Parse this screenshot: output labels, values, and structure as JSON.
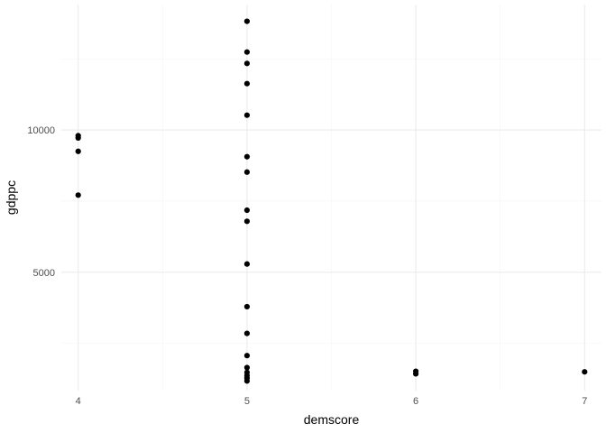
{
  "chart_data": {
    "type": "scatter",
    "title": "",
    "xlabel": "demscore",
    "ylabel": "gdppc",
    "xlim": [
      3.9,
      7.1
    ],
    "ylim": [
      840,
      14410
    ],
    "x_ticks": [
      4,
      5,
      6,
      7
    ],
    "x_tick_labels": [
      "4",
      "5",
      "6",
      "7"
    ],
    "y_ticks": [
      5000,
      10000
    ],
    "y_tick_labels": [
      "5000",
      "10000"
    ],
    "y_minor_ticks": [
      2500,
      7500,
      12500
    ],
    "grid": true,
    "legend": "none",
    "point_color": "#000000",
    "points": [
      {
        "x": 4,
        "y": 9800
      },
      {
        "x": 4,
        "y": 9720
      },
      {
        "x": 4,
        "y": 9250
      },
      {
        "x": 4,
        "y": 7710
      },
      {
        "x": 5,
        "y": 13820
      },
      {
        "x": 5,
        "y": 12740
      },
      {
        "x": 5,
        "y": 12340
      },
      {
        "x": 5,
        "y": 11630
      },
      {
        "x": 5,
        "y": 10520
      },
      {
        "x": 5,
        "y": 9060
      },
      {
        "x": 5,
        "y": 8520
      },
      {
        "x": 5,
        "y": 7180
      },
      {
        "x": 5,
        "y": 6790
      },
      {
        "x": 5,
        "y": 5290
      },
      {
        "x": 5,
        "y": 3790
      },
      {
        "x": 5,
        "y": 2850
      },
      {
        "x": 5,
        "y": 2070
      },
      {
        "x": 5,
        "y": 1650
      },
      {
        "x": 5,
        "y": 1480
      },
      {
        "x": 5,
        "y": 1370
      },
      {
        "x": 5,
        "y": 1280
      },
      {
        "x": 5,
        "y": 1180
      },
      {
        "x": 6,
        "y": 1520
      },
      {
        "x": 6,
        "y": 1430
      },
      {
        "x": 7,
        "y": 1500
      }
    ]
  }
}
